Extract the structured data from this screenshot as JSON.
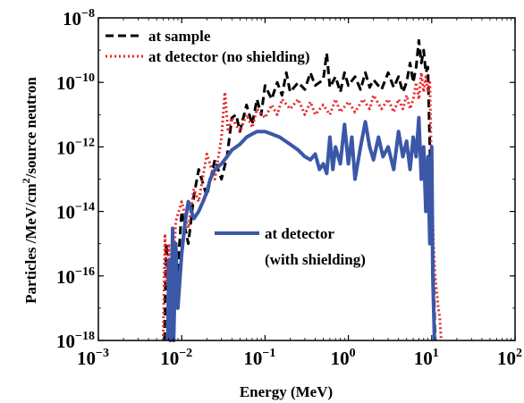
{
  "chart_data": {
    "type": "line",
    "xlabel": "Energy (MeV)",
    "ylabel_parts": [
      "Particles /MeV/cm",
      "2",
      "/source neutron"
    ],
    "x_scale": "log",
    "y_scale": "log",
    "xlim": [
      0.001,
      100
    ],
    "ylim": [
      1e-18,
      1e-08
    ],
    "x_ticks": [
      {
        "base": "10",
        "exp": "−3",
        "value": 0.001
      },
      {
        "base": "10",
        "exp": "−2",
        "value": 0.01
      },
      {
        "base": "10",
        "exp": "−1",
        "value": 0.1
      },
      {
        "base": "10",
        "exp": "0",
        "value": 1
      },
      {
        "base": "10",
        "exp": "1",
        "value": 10
      },
      {
        "base": "10",
        "exp": "2",
        "value": 100
      }
    ],
    "y_ticks": [
      {
        "base": "10",
        "exp": "−18",
        "value": 1e-18
      },
      {
        "base": "10",
        "exp": "−16",
        "value": 1e-16
      },
      {
        "base": "10",
        "exp": "−14",
        "value": 1e-14
      },
      {
        "base": "10",
        "exp": "−12",
        "value": 1e-12
      },
      {
        "base": "10",
        "exp": "−10",
        "value": 1e-10
      },
      {
        "base": "10",
        "exp": "−8",
        "value": 1e-08
      }
    ],
    "grid": false,
    "series": [
      {
        "name": "at sample",
        "color": "#000000",
        "style": "dashed",
        "points": [
          [
            0.0062,
            1e-18
          ],
          [
            0.0065,
            1e-15
          ],
          [
            0.007,
            5e-17
          ],
          [
            0.0075,
            1e-18
          ],
          [
            0.0085,
            2e-17
          ],
          [
            0.01,
            1e-14
          ],
          [
            0.012,
            1e-15
          ],
          [
            0.014,
            3e-14
          ],
          [
            0.016,
            2e-13
          ],
          [
            0.02,
            3e-14
          ],
          [
            0.025,
            4e-13
          ],
          [
            0.03,
            1e-13
          ],
          [
            0.035,
            5e-13
          ],
          [
            0.04,
            8e-12
          ],
          [
            0.045,
            1e-11
          ],
          [
            0.05,
            3e-12
          ],
          [
            0.06,
            2e-11
          ],
          [
            0.07,
            5e-12
          ],
          [
            0.08,
            3e-11
          ],
          [
            0.09,
            1e-11
          ],
          [
            0.1,
            8e-11
          ],
          [
            0.12,
            3e-11
          ],
          [
            0.14,
            1e-10
          ],
          [
            0.16,
            4e-11
          ],
          [
            0.18,
            2e-10
          ],
          [
            0.2,
            5e-11
          ],
          [
            0.25,
            1e-10
          ],
          [
            0.3,
            6e-11
          ],
          [
            0.35,
            2e-10
          ],
          [
            0.4,
            8e-11
          ],
          [
            0.5,
            1.2e-10
          ],
          [
            0.55,
            8e-10
          ],
          [
            0.6,
            7e-11
          ],
          [
            0.7,
            1.5e-10
          ],
          [
            0.8,
            5e-11
          ],
          [
            0.9,
            2e-10
          ],
          [
            1,
            8e-11
          ],
          [
            1.2,
            1.5e-10
          ],
          [
            1.4,
            6e-11
          ],
          [
            1.6,
            2e-10
          ],
          [
            1.8,
            7e-11
          ],
          [
            2,
            1.2e-10
          ],
          [
            2.5,
            6e-11
          ],
          [
            3,
            2e-10
          ],
          [
            3.5,
            7e-11
          ],
          [
            4,
            1.5e-10
          ],
          [
            4.5,
            5e-11
          ],
          [
            5,
            1e-10
          ],
          [
            5.5,
            4e-10
          ],
          [
            6,
            1e-10
          ],
          [
            6.5,
            3e-10
          ],
          [
            7,
            2e-09
          ],
          [
            7.5,
            4e-10
          ],
          [
            8,
            1e-09
          ],
          [
            8.5,
            2e-10
          ],
          [
            9,
            3e-10
          ],
          [
            9.5,
            1e-12
          ],
          [
            10,
            1e-14
          ],
          [
            10.5,
            1e-16
          ],
          [
            11,
            1e-18
          ]
        ]
      },
      {
        "name": "at detector (no shielding)",
        "color": "#e8262a",
        "style": "dotted",
        "points": [
          [
            0.006,
            1e-18
          ],
          [
            0.0063,
            2e-15
          ],
          [
            0.0066,
            5e-17
          ],
          [
            0.007,
            1e-15
          ],
          [
            0.0075,
            1e-17
          ],
          [
            0.0085,
            5e-15
          ],
          [
            0.01,
            2e-14
          ],
          [
            0.012,
            3e-15
          ],
          [
            0.014,
            5e-14
          ],
          [
            0.016,
            2e-14
          ],
          [
            0.02,
            6e-13
          ],
          [
            0.025,
            1e-13
          ],
          [
            0.03,
            2e-12
          ],
          [
            0.033,
            5e-11
          ],
          [
            0.036,
            3e-12
          ],
          [
            0.04,
            8e-12
          ],
          [
            0.05,
            3e-12
          ],
          [
            0.06,
            1e-11
          ],
          [
            0.07,
            4e-12
          ],
          [
            0.08,
            1.5e-11
          ],
          [
            0.1,
            8e-12
          ],
          [
            0.12,
            2e-11
          ],
          [
            0.14,
            1e-11
          ],
          [
            0.16,
            3e-11
          ],
          [
            0.2,
            1.5e-11
          ],
          [
            0.25,
            3e-11
          ],
          [
            0.3,
            1e-11
          ],
          [
            0.35,
            2.5e-11
          ],
          [
            0.4,
            1e-11
          ],
          [
            0.5,
            2e-11
          ],
          [
            0.6,
            1e-11
          ],
          [
            0.7,
            3e-11
          ],
          [
            0.8,
            1.2e-11
          ],
          [
            1,
            2.5e-11
          ],
          [
            1.2,
            1.2e-11
          ],
          [
            1.5,
            3e-11
          ],
          [
            1.8,
            1.5e-11
          ],
          [
            2,
            4e-11
          ],
          [
            2.5,
            1.5e-11
          ],
          [
            3,
            3e-11
          ],
          [
            3.5,
            1.2e-11
          ],
          [
            4,
            3e-11
          ],
          [
            4.5,
            1.5e-11
          ],
          [
            5,
            4e-11
          ],
          [
            5.5,
            1.5e-11
          ],
          [
            6,
            3e-11
          ],
          [
            6.5,
            1e-10
          ],
          [
            7,
            3e-11
          ],
          [
            7.5,
            2e-10
          ],
          [
            8,
            5e-11
          ],
          [
            8.5,
            1.5e-10
          ],
          [
            9,
            5e-11
          ],
          [
            9.5,
            1e-10
          ],
          [
            10,
            1e-13
          ],
          [
            10.5,
            1e-15
          ],
          [
            11,
            1e-16
          ],
          [
            11.5,
            3e-17
          ],
          [
            12,
            1e-17
          ],
          [
            12.5,
            5e-18
          ],
          [
            13,
            1e-18
          ]
        ]
      },
      {
        "name": "at detector (with shielding)",
        "color": "#3b57a8",
        "style": "solid",
        "points": [
          [
            0.0068,
            1e-18
          ],
          [
            0.007,
            3e-16
          ],
          [
            0.0073,
            1e-18
          ],
          [
            0.0078,
            3e-15
          ],
          [
            0.008,
            1e-18
          ],
          [
            0.0085,
            1e-15
          ],
          [
            0.009,
            1e-17
          ],
          [
            0.01,
            5e-16
          ],
          [
            0.011,
            5e-15
          ],
          [
            0.012,
            2e-14
          ],
          [
            0.014,
            6e-15
          ],
          [
            0.016,
            1e-14
          ],
          [
            0.018,
            2e-14
          ],
          [
            0.02,
            4e-14
          ],
          [
            0.022,
            1e-13
          ],
          [
            0.025,
            2e-13
          ],
          [
            0.03,
            3e-13
          ],
          [
            0.035,
            5e-13
          ],
          [
            0.04,
            8e-13
          ],
          [
            0.05,
            1.2e-12
          ],
          [
            0.06,
            2e-12
          ],
          [
            0.07,
            2.5e-12
          ],
          [
            0.08,
            3e-12
          ],
          [
            0.1,
            3e-12
          ],
          [
            0.12,
            2.5e-12
          ],
          [
            0.15,
            2e-12
          ],
          [
            0.2,
            1.2e-12
          ],
          [
            0.25,
            8e-13
          ],
          [
            0.3,
            5e-13
          ],
          [
            0.35,
            4e-13
          ],
          [
            0.4,
            6e-13
          ],
          [
            0.45,
            2e-13
          ],
          [
            0.5,
            3e-13
          ],
          [
            0.55,
            1.5e-13
          ],
          [
            0.6,
            2e-12
          ],
          [
            0.65,
            2e-13
          ],
          [
            0.7,
            1e-12
          ],
          [
            0.8,
            3e-13
          ],
          [
            0.9,
            5e-12
          ],
          [
            1,
            3e-13
          ],
          [
            1.1,
            2e-12
          ],
          [
            1.2,
            1e-13
          ],
          [
            1.4,
            1e-12
          ],
          [
            1.6,
            6e-12
          ],
          [
            1.8,
            1e-12
          ],
          [
            2,
            4e-13
          ],
          [
            2.3,
            2e-12
          ],
          [
            2.6,
            5e-13
          ],
          [
            3,
            1e-12
          ],
          [
            3.5,
            2e-13
          ],
          [
            4,
            3e-12
          ],
          [
            4.5,
            5e-13
          ],
          [
            5,
            1.5e-12
          ],
          [
            5.5,
            2e-13
          ],
          [
            6,
            2e-12
          ],
          [
            6.5,
            5e-13
          ],
          [
            7,
            8e-12
          ],
          [
            7.5,
            1e-13
          ],
          [
            8,
            1e-12
          ],
          [
            8.5,
            1e-14
          ],
          [
            9,
            5e-13
          ],
          [
            9.5,
            1e-15
          ],
          [
            10,
            1e-12
          ],
          [
            10.3,
            1e-16
          ],
          [
            10.8,
            1e-18
          ]
        ]
      }
    ],
    "legend_top": {
      "placement": "top-left",
      "entries": [
        "at sample",
        "at detector (no shielding)"
      ]
    },
    "legend_mid": {
      "placement": "center-right",
      "entries": [
        "at detector",
        "(with shielding)"
      ]
    }
  }
}
